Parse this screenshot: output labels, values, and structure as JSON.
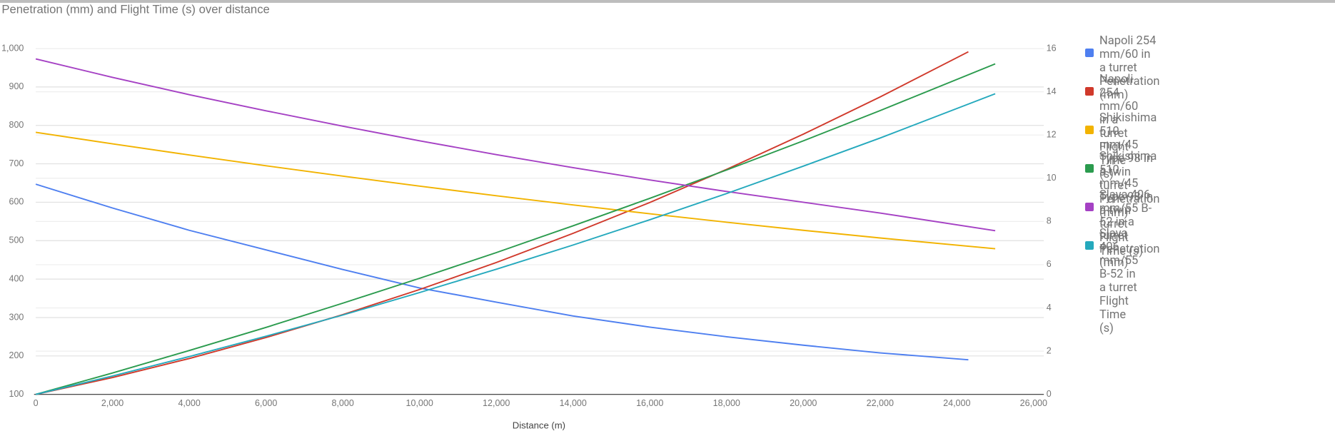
{
  "chart_data": {
    "type": "line",
    "title": "Penetration (mm) and Flight Time (s) over distance",
    "x_label": "Distance (m)",
    "xlim": [
      0,
      26000
    ],
    "xticks": [
      0,
      {
        "value": 2000,
        "label": "2,000"
      },
      {
        "value": 4000,
        "label": "4,000"
      },
      {
        "value": 6000,
        "label": "6,000"
      },
      {
        "value": 8000,
        "label": "8,000"
      },
      {
        "value": 10000,
        "label": "10,000"
      },
      {
        "value": 12000,
        "label": "12,000"
      },
      {
        "value": 14000,
        "label": "14,000"
      },
      {
        "value": 16000,
        "label": "16,000"
      },
      {
        "value": 18000,
        "label": "18,000"
      },
      {
        "value": 20000,
        "label": "20,000"
      },
      {
        "value": 22000,
        "label": "22,000"
      },
      {
        "value": 24000,
        "label": "24,000"
      },
      {
        "value": 26000,
        "label": "26,000"
      }
    ],
    "ylim": [
      100,
      1000
    ],
    "yticks": [
      100,
      200,
      300,
      400,
      500,
      600,
      700,
      800,
      900,
      {
        "value": 1000,
        "label": "1,000"
      }
    ],
    "y2lim": [
      0,
      16
    ],
    "y2ticks": [
      0,
      2,
      4,
      6,
      8,
      10,
      12,
      14,
      16
    ],
    "grid": true,
    "legend": "right",
    "series": [
      {
        "name": "Napoli 254 mm/60 in a turret\nPenetration (mm)",
        "color": "#4e7ff0",
        "x": [
          0,
          2000,
          4000,
          6000,
          8000,
          10000,
          12000,
          14000,
          16000,
          18000,
          20000,
          22000,
          24300
        ],
        "values": [
          647,
          585,
          527,
          476,
          425,
          377,
          340,
          304,
          275,
          250,
          228,
          208,
          190
        ]
      },
      {
        "name": "Napoli 254 mm/60 in a turret\nFlight Time (s)",
        "color": "#d0392b",
        "axis": "y2",
        "x": [
          0,
          2000,
          4000,
          6000,
          8000,
          10000,
          12000,
          14000,
          16000,
          18000,
          20000,
          22000,
          24300
        ],
        "values": [
          0,
          0.78,
          1.66,
          2.63,
          3.69,
          4.85,
          6.1,
          7.45,
          8.88,
          10.41,
          12.04,
          13.76,
          15.85
        ]
      },
      {
        "name": "Shikishima 510 mm/45 Type 98 in a twin turret\nPenetration (mm)",
        "color": "#f2b300",
        "x": [
          0,
          2000,
          4000,
          6000,
          8000,
          10000,
          12000,
          14000,
          16000,
          18000,
          20000,
          22000,
          25000
        ],
        "values": [
          782,
          752,
          723,
          695,
          668,
          642,
          617,
          593,
          570,
          548,
          527,
          507,
          479
        ]
      },
      {
        "name": "Shikishima 510 mm/45 Type 98 in a twin turret\nFlight Time (s)",
        "color": "#2b9b4e",
        "axis": "y2",
        "x": [
          0,
          2000,
          4000,
          6000,
          8000,
          10000,
          12000,
          14000,
          16000,
          18000,
          20000,
          22000,
          25000
        ],
        "values": [
          0,
          0.99,
          2.03,
          3.1,
          4.22,
          5.37,
          6.56,
          7.8,
          9.07,
          10.38,
          11.73,
          13.13,
          15.29
        ]
      },
      {
        "name": "Slava 406 mm/55 B-52 in a turret\nPenetration (mm)",
        "color": "#a541c4",
        "x": [
          0,
          2000,
          4000,
          6000,
          8000,
          10000,
          12000,
          14000,
          16000,
          18000,
          20000,
          22000,
          25000
        ],
        "values": [
          973,
          925,
          880,
          838,
          798,
          760,
          724,
          690,
          658,
          628,
          600,
          572,
          526
        ]
      },
      {
        "name": "Slava 406 mm/55 B-52 in a turret\nFlight Time (s)",
        "color": "#25a9bd",
        "axis": "y2",
        "x": [
          0,
          2000,
          4000,
          6000,
          8000,
          10000,
          12000,
          14000,
          16000,
          18000,
          20000,
          22000,
          25000
        ],
        "values": [
          0,
          0.85,
          1.75,
          2.69,
          3.67,
          4.71,
          5.79,
          6.91,
          8.08,
          9.29,
          10.56,
          11.86,
          13.91
        ]
      }
    ]
  }
}
